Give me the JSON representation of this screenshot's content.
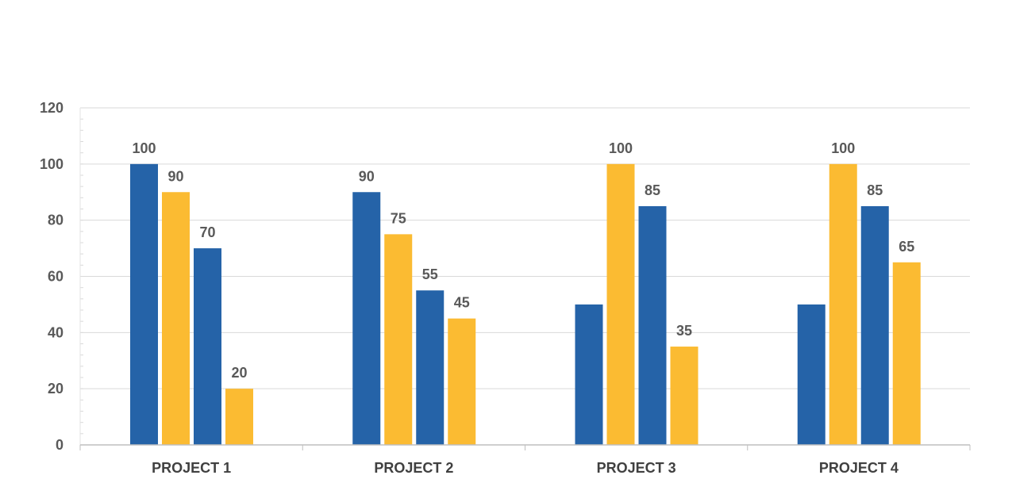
{
  "chart_data": {
    "type": "bar",
    "title": "",
    "xlabel": "",
    "ylabel": "",
    "categories": [
      "PROJECT 1",
      "PROJECT 2",
      "PROJECT 3",
      "PROJECT 4"
    ],
    "ylim": [
      0,
      120
    ],
    "yticks": [
      0,
      20,
      40,
      60,
      80,
      100,
      120
    ],
    "grid": true,
    "legend": "none",
    "bar_colors": [
      "#2563a8",
      "#fbbb32",
      "#2563a8",
      "#fbbb32"
    ],
    "bars": [
      [
        {
          "value": 100,
          "label": "100"
        },
        {
          "value": 90,
          "label": "90"
        },
        {
          "value": 70,
          "label": "70"
        },
        {
          "value": 20,
          "label": "20"
        }
      ],
      [
        {
          "value": 90,
          "label": "90"
        },
        {
          "value": 75,
          "label": "75"
        },
        {
          "value": 55,
          "label": "55"
        },
        {
          "value": 45,
          "label": "45"
        }
      ],
      [
        {
          "value": 50,
          "label": ""
        },
        {
          "value": 100,
          "label": "100"
        },
        {
          "value": 85,
          "label": "85"
        },
        {
          "value": 35,
          "label": "35"
        }
      ],
      [
        {
          "value": 50,
          "label": ""
        },
        {
          "value": 100,
          "label": "100"
        },
        {
          "value": 85,
          "label": "85"
        },
        {
          "value": 65,
          "label": "65"
        }
      ]
    ]
  }
}
